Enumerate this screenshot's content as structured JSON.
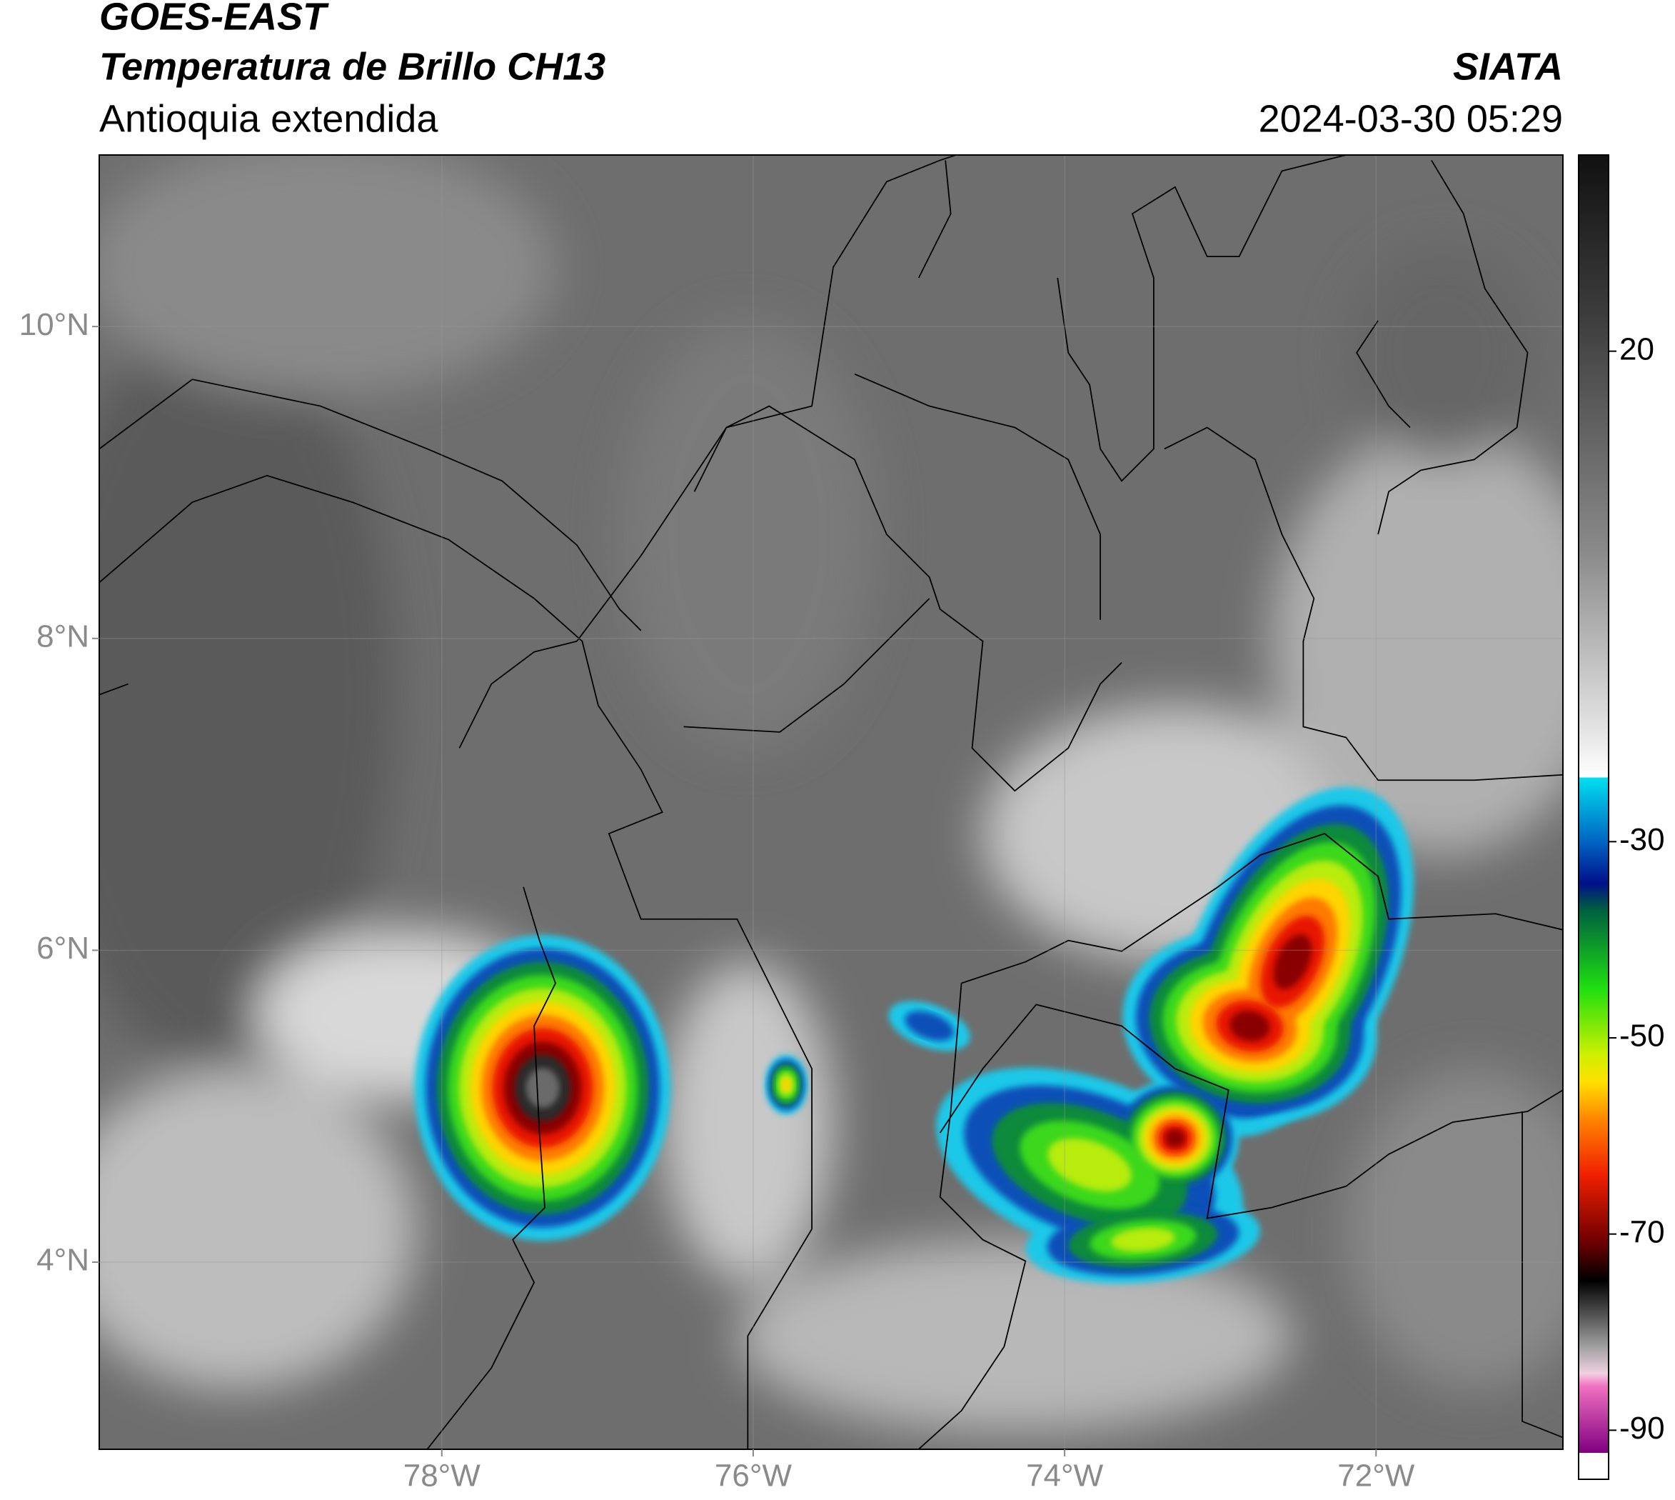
{
  "header": {
    "title": "GOES-EAST",
    "subtitle": "Temperatura de Brillo CH13",
    "region": "Antioquia extendida",
    "agency": "SIATA",
    "datetime": "2024-03-30 05:29"
  },
  "map": {
    "xlim": [
      -80.2,
      -70.8
    ],
    "ylim": [
      2.8,
      11.1
    ],
    "xticks": [
      {
        "value": -78,
        "label": "78°W"
      },
      {
        "value": -76,
        "label": "76°W"
      },
      {
        "value": -74,
        "label": "74°W"
      },
      {
        "value": -72,
        "label": "72°W"
      }
    ],
    "yticks": [
      {
        "value": 10,
        "label": "10°N"
      },
      {
        "value": 8,
        "label": "8°N"
      },
      {
        "value": 6,
        "label": "6°N"
      },
      {
        "value": 4,
        "label": "4°N"
      }
    ],
    "grid": true
  },
  "colorbar": {
    "lim": [
      -95,
      40
    ],
    "ticks": [
      20,
      -30,
      -50,
      -70,
      -90
    ]
  }
}
